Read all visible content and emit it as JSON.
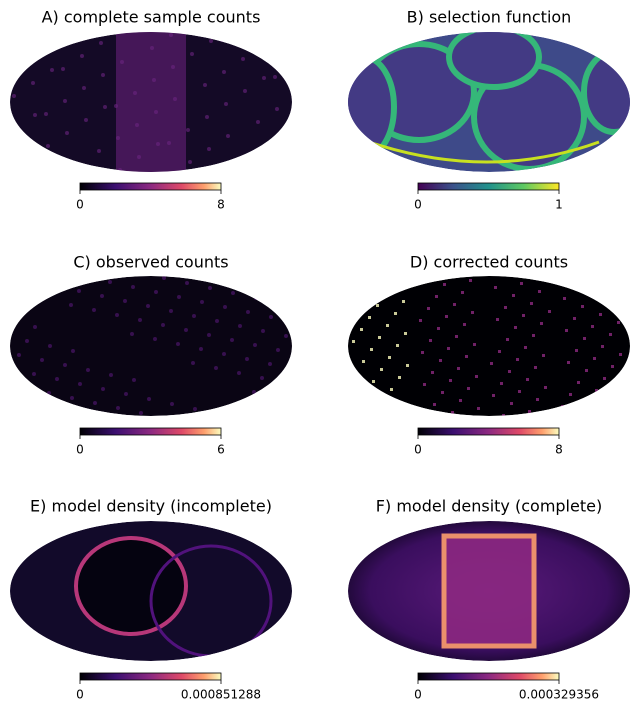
{
  "chart_data": [
    {
      "type": "map",
      "title": "A) complete sample counts",
      "colormap": "magma",
      "clim": [
        0,
        8
      ],
      "cticks": [
        0,
        8
      ]
    },
    {
      "type": "map",
      "title": "B) selection function",
      "colormap": "viridis",
      "clim": [
        0,
        1
      ],
      "cticks": [
        0,
        1
      ]
    },
    {
      "type": "map",
      "title": "C) observed counts",
      "colormap": "magma",
      "clim": [
        0,
        6
      ],
      "cticks": [
        0,
        6
      ]
    },
    {
      "type": "map",
      "title": "D) corrected counts",
      "colormap": "magma",
      "clim": [
        0,
        8
      ],
      "cticks": [
        0,
        8
      ]
    },
    {
      "type": "map",
      "title": "E) model density (incomplete)",
      "colormap": "magma",
      "clim": [
        0,
        0.000851288
      ],
      "cticks": [
        0,
        0.000851288
      ]
    },
    {
      "type": "map",
      "title": "F) model density (complete)",
      "colormap": "magma",
      "clim": [
        0,
        0.000329356
      ],
      "cticks": [
        0,
        0.000329356
      ]
    }
  ]
}
